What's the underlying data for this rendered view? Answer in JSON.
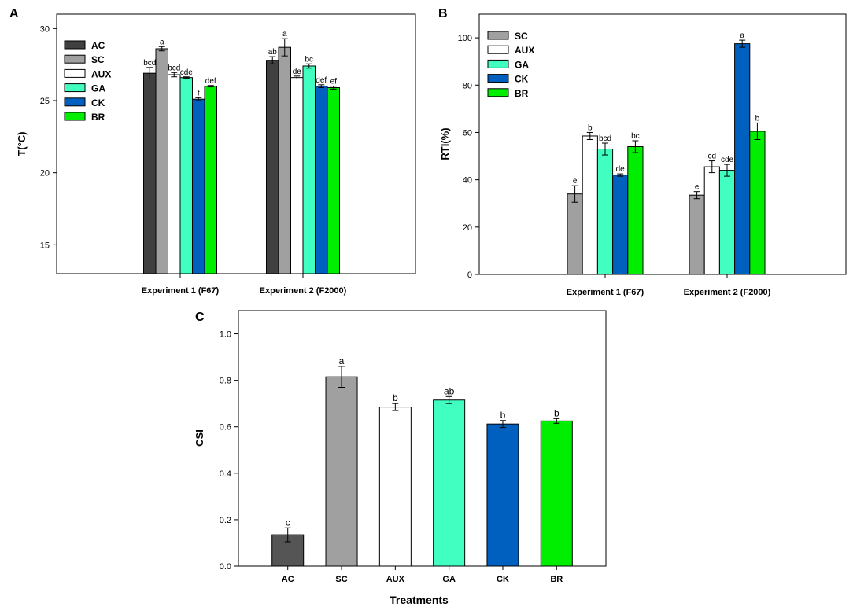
{
  "colors": {
    "AC": "#404040",
    "SC": "#a0a0a0",
    "AUX": "#ffffff",
    "GA": "#40ffc0",
    "CK": "#0060c0",
    "BR": "#00ee00",
    "CSI_AC": "#555555",
    "CSI_SC": "#a0a0a0"
  },
  "chart_data": [
    {
      "panel": "A",
      "type": "bar",
      "ylabel": "T(°C)",
      "xlabel": "",
      "ylim": [
        13,
        31
      ],
      "yticks": [
        15,
        20,
        25,
        30
      ],
      "categories": [
        "Experiment 1 (F67)",
        "Experiment 2 (F2000)"
      ],
      "legend": {
        "position": "top-left",
        "entries": [
          "AC",
          "SC",
          "AUX",
          "GA",
          "CK",
          "BR"
        ]
      },
      "series": [
        {
          "name": "AC",
          "values": [
            26.9,
            27.8
          ],
          "errors": [
            0.4,
            0.25
          ],
          "labels": [
            "bcd",
            "ab"
          ]
        },
        {
          "name": "SC",
          "values": [
            28.6,
            28.7
          ],
          "errors": [
            0.15,
            0.6
          ],
          "labels": [
            "a",
            "a"
          ]
        },
        {
          "name": "AUX",
          "values": [
            26.8,
            26.6
          ],
          "errors": [
            0.15,
            0.1
          ],
          "labels": [
            "bcd",
            "de"
          ]
        },
        {
          "name": "GA",
          "values": [
            26.6,
            27.4
          ],
          "errors": [
            0.05,
            0.15
          ],
          "labels": [
            "cde",
            "bc"
          ]
        },
        {
          "name": "CK",
          "values": [
            25.1,
            26.0
          ],
          "errors": [
            0.1,
            0.1
          ],
          "labels": [
            "f",
            "def"
          ]
        },
        {
          "name": "BR",
          "values": [
            26.0,
            25.9
          ],
          "errors": [
            0.05,
            0.1
          ],
          "labels": [
            "def",
            "ef"
          ]
        }
      ]
    },
    {
      "panel": "B",
      "type": "bar",
      "ylabel": "RTI(%)",
      "xlabel": "",
      "ylim": [
        0,
        110
      ],
      "yticks": [
        0,
        20,
        40,
        60,
        80,
        100
      ],
      "categories": [
        "Experiment 1 (F67)",
        "Experiment 2 (F2000)"
      ],
      "legend": {
        "position": "top-left",
        "entries": [
          "SC",
          "AUX",
          "GA",
          "CK",
          "BR"
        ]
      },
      "series": [
        {
          "name": "SC",
          "values": [
            34.0,
            33.5
          ],
          "errors": [
            3.5,
            1.5
          ],
          "labels": [
            "e",
            "e"
          ]
        },
        {
          "name": "AUX",
          "values": [
            58.5,
            45.5
          ],
          "errors": [
            1.5,
            2.5
          ],
          "labels": [
            "b",
            "cd"
          ]
        },
        {
          "name": "GA",
          "values": [
            53.0,
            44.0
          ],
          "errors": [
            2.5,
            2.5
          ],
          "labels": [
            "bcd",
            "cde"
          ]
        },
        {
          "name": "CK",
          "values": [
            42.0,
            97.5
          ],
          "errors": [
            0.5,
            1.5
          ],
          "labels": [
            "de",
            "a"
          ]
        },
        {
          "name": "BR",
          "values": [
            54.0,
            60.5
          ],
          "errors": [
            2.5,
            3.5
          ],
          "labels": [
            "bc",
            "b"
          ]
        }
      ]
    },
    {
      "panel": "C",
      "type": "bar",
      "ylabel": "CSI",
      "xlabel": "Treatments",
      "ylim": [
        0,
        1.1
      ],
      "yticks": [
        "0.0",
        "0.2",
        "0.4",
        "0.6",
        "0.8",
        "1.0"
      ],
      "categories": [
        "AC",
        "SC",
        "AUX",
        "GA",
        "CK",
        "BR"
      ],
      "values": [
        0.135,
        0.815,
        0.685,
        0.715,
        0.612,
        0.625
      ],
      "errors": [
        0.03,
        0.045,
        0.015,
        0.015,
        0.015,
        0.01
      ],
      "labels": [
        "c",
        "a",
        "b",
        "ab",
        "b",
        "b"
      ]
    }
  ]
}
